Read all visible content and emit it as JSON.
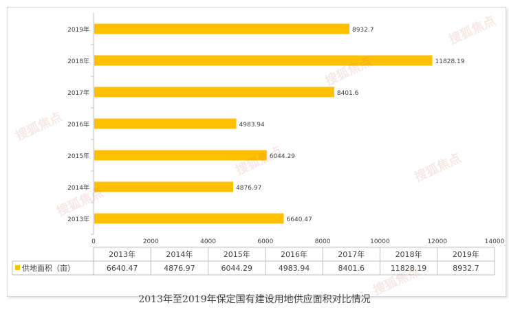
{
  "chart_data": {
    "type": "bar",
    "orientation": "horizontal",
    "categories": [
      "2013年",
      "2014年",
      "2015年",
      "2016年",
      "2017年",
      "2018年",
      "2019年"
    ],
    "series": [
      {
        "name": "供地面积（亩）",
        "values": [
          6640.47,
          4876.97,
          6044.29,
          4983.94,
          8401.6,
          11828.19,
          8932.7
        ]
      }
    ],
    "value_labels": [
      "6640.47",
      "4876.97",
      "6044.29",
      "4983.94",
      "8401.6",
      "11828.19",
      "8932.7"
    ],
    "xlim": [
      0,
      14000
    ],
    "xticks": [
      "0",
      "2000",
      "4000",
      "6000",
      "8000",
      "10000",
      "12000",
      "14000"
    ],
    "grid": false,
    "legend": "in data table",
    "data_table": {
      "headers": [
        "2013年",
        "2014年",
        "2015年",
        "2016年",
        "2017年",
        "2018年",
        "2019年"
      ],
      "row_label": "供地面积（亩）",
      "row_values": [
        "6640.47",
        "4876.97",
        "6044.29",
        "4983.94",
        "8401.6",
        "11828.19",
        "8932.7"
      ]
    },
    "bar_color": "#FFC000",
    "title": "2013年至2019年保定国有建设用地供应面积对比情况"
  },
  "watermark": "搜狐焦点"
}
